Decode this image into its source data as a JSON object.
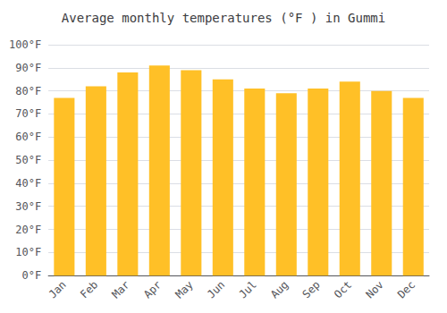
{
  "chart_data": {
    "type": "bar",
    "title": "Average monthly temperatures (°F ) in Gummi",
    "categories": [
      "Jan",
      "Feb",
      "Mar",
      "Apr",
      "May",
      "Jun",
      "Jul",
      "Aug",
      "Sep",
      "Oct",
      "Nov",
      "Dec"
    ],
    "values": [
      77,
      82,
      88,
      91,
      89,
      85,
      81,
      79,
      81,
      84,
      80,
      77
    ],
    "color": "#FFC027",
    "ylim": [
      0,
      100
    ],
    "yticks": [
      {
        "value": 0,
        "label": "0°F"
      },
      {
        "value": 10,
        "label": "10°F"
      },
      {
        "value": 20,
        "label": "20°F"
      },
      {
        "value": 30,
        "label": "30°F"
      },
      {
        "value": 40,
        "label": "40°F"
      },
      {
        "value": 50,
        "label": "50°F"
      },
      {
        "value": 60,
        "label": "60°F"
      },
      {
        "value": 70,
        "label": "70°F"
      },
      {
        "value": 80,
        "label": "80°F"
      },
      {
        "value": 90,
        "label": "90°F"
      },
      {
        "value": 100,
        "label": "100°F"
      }
    ],
    "grid": true
  }
}
